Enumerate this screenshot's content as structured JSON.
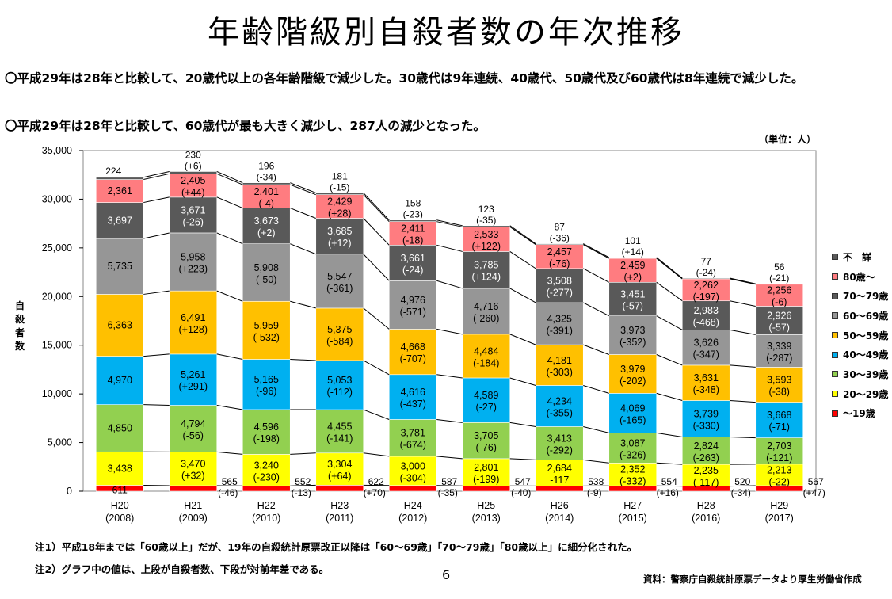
{
  "page": {
    "title": "年齢階級別自殺者数の年次推移",
    "bullet1": "〇平成29年は28年と比較して、20歳代以上の各年齢階級で減少した。30歳代は9年連続、40歳代、50歳代及び60歳代は8年連続で減少した。",
    "bullet2": "〇平成29年は28年と比較して、60歳代が最も大きく減少し、287人の減少となった。",
    "unit": "（単位：人）",
    "note1": "注1）平成18年までは「60歳以上」だが、19年の自殺統計原票改正以降は「60～69歳」「70～79歳」「80歳以上」に細分化された。",
    "note2": "注2）グラフ中の値は、上段が自殺者数、下段が対前年差である。",
    "page_number": "6",
    "source": "資料：警察庁自殺統計原票データより厚生労働省作成"
  },
  "colors": {
    "under19": "#ff0000",
    "s20": "#ffff00",
    "s30": "#92d050",
    "s40": "#00b0f0",
    "s50": "#ffc000",
    "s60": "#969696",
    "s70": "#595959",
    "s80": "#ff7c80",
    "unknown": "#595959"
  },
  "chart_data": {
    "type": "bar",
    "stacked": true,
    "ylabel": "自殺者数",
    "ylim": [
      0,
      35000
    ],
    "yticks": [
      "0",
      "5,000",
      "10,000",
      "15,000",
      "20,000",
      "25,000",
      "30,000",
      "35,000"
    ],
    "categories": [
      "H20\n(2008)",
      "H21\n(2009)",
      "H22\n(2010)",
      "H23\n(2011)",
      "H24\n(2012)",
      "H25\n(2013)",
      "H26\n(2014)",
      "H27\n(2015)",
      "H28\n(2016)",
      "H29\n(2017)"
    ],
    "category_years": [
      "H20",
      "H21",
      "H22",
      "H23",
      "H24",
      "H25",
      "H26",
      "H27",
      "H28",
      "H29"
    ],
    "category_ad": [
      "(2008)",
      "(2009)",
      "(2010)",
      "(2011)",
      "(2012)",
      "(2013)",
      "(2014)",
      "(2015)",
      "(2016)",
      "(2017)"
    ],
    "series": [
      {
        "key": "under19",
        "name": "～19歳",
        "values": [
          611,
          565,
          552,
          622,
          587,
          547,
          538,
          554,
          520,
          567
        ],
        "labels": [
          "611",
          "565",
          "552",
          "622",
          "587",
          "547",
          "538",
          "554",
          "520",
          "567"
        ],
        "diffs": [
          "",
          "(-46)",
          "(-13)",
          "(+70)",
          "(-35)",
          "(-40)",
          "(-9)",
          "(+16)",
          "(-34)",
          "(+47)"
        ]
      },
      {
        "key": "s20",
        "name": "20～29歳",
        "values": [
          3438,
          3470,
          3240,
          3304,
          3000,
          2801,
          2684,
          2352,
          2235,
          2213
        ],
        "labels": [
          "3,438",
          "3,470",
          "3,240",
          "3,304",
          "3,000",
          "2,801",
          "2,684",
          "2,352",
          "2,235",
          "2,213"
        ],
        "diffs": [
          "",
          "(+32)",
          "(-230)",
          "(+64)",
          "(-304)",
          "(-199)",
          "-117",
          "(-332)",
          "(-117)",
          "(-22)"
        ]
      },
      {
        "key": "s30",
        "name": "30～39歳",
        "values": [
          4850,
          4794,
          4596,
          4455,
          3781,
          3705,
          3413,
          3087,
          2824,
          2703
        ],
        "labels": [
          "4,850",
          "4,794",
          "4,596",
          "4,455",
          "3,781",
          "3,705",
          "3,413",
          "3,087",
          "2,824",
          "2,703"
        ],
        "diffs": [
          "",
          "(-56)",
          "(-198)",
          "(-141)",
          "(-674)",
          "(-76)",
          "(-292)",
          "(-326)",
          "(-263)",
          "(-121)"
        ]
      },
      {
        "key": "s40",
        "name": "40～49歳",
        "values": [
          4970,
          5261,
          5165,
          5053,
          4616,
          4589,
          4234,
          4069,
          3739,
          3668
        ],
        "labels": [
          "4,970",
          "5,261",
          "5,165",
          "5,053",
          "4,616",
          "4,589",
          "4,234",
          "4,069",
          "3,739",
          "3,668"
        ],
        "diffs": [
          "",
          "(+291)",
          "(-96)",
          "(-112)",
          "(-437)",
          "(-27)",
          "(-355)",
          "(-165)",
          "(-330)",
          "(-71)"
        ]
      },
      {
        "key": "s50",
        "name": "50～59歳",
        "values": [
          6363,
          6491,
          5959,
          5375,
          4668,
          4484,
          4181,
          3979,
          3631,
          3593
        ],
        "labels": [
          "6,363",
          "6,491",
          "5,959",
          "5,375",
          "4,668",
          "4,484",
          "4,181",
          "3,979",
          "3,631",
          "3,593"
        ],
        "diffs": [
          "",
          "(+128)",
          "(-532)",
          "(-584)",
          "(-707)",
          "(-184)",
          "(-303)",
          "(-202)",
          "(-348)",
          "(-38)"
        ]
      },
      {
        "key": "s60",
        "name": "60～69歳",
        "values": [
          5735,
          5958,
          5908,
          5547,
          4976,
          4716,
          4325,
          3973,
          3626,
          3339
        ],
        "labels": [
          "5,735",
          "5,958",
          "5,908",
          "5,547",
          "4,976",
          "4,716",
          "4,325",
          "3,973",
          "3,626",
          "3,339"
        ],
        "diffs": [
          "",
          "(+223)",
          "(-50)",
          "(-361)",
          "(-571)",
          "(-260)",
          "(-391)",
          "(-352)",
          "(-347)",
          "(-287)"
        ]
      },
      {
        "key": "s70",
        "name": "70～79歳",
        "values": [
          3697,
          3671,
          3673,
          3685,
          3661,
          3785,
          3508,
          3451,
          2983,
          2926
        ],
        "labels": [
          "3,697",
          "3,671",
          "3,673",
          "3,685",
          "3,661",
          "3,785",
          "3,508",
          "3,451",
          "2,983",
          "2,926"
        ],
        "diffs": [
          "",
          "(-26)",
          "(+2)",
          "(+12)",
          "(-24)",
          "(+124)",
          "(-277)",
          "(-57)",
          "(-468)",
          "(-57)"
        ]
      },
      {
        "key": "s80",
        "name": "80歳～",
        "values": [
          2361,
          2405,
          2401,
          2429,
          2411,
          2533,
          2457,
          2459,
          2262,
          2256
        ],
        "labels": [
          "2,361",
          "2,405",
          "2,401",
          "2,429",
          "2,411",
          "2,533",
          "2,457",
          "2,459",
          "2,262",
          "2,256"
        ],
        "diffs": [
          "",
          "(+44)",
          "(-4)",
          "(+28)",
          "(-18)",
          "(+122)",
          "(-76)",
          "(+2)",
          "(-197)",
          "(-6)"
        ]
      },
      {
        "key": "unknown",
        "name": "不　詳",
        "values": [
          224,
          230,
          196,
          181,
          158,
          123,
          87,
          101,
          77,
          56
        ],
        "labels": [
          "224",
          "230",
          "196",
          "181",
          "158",
          "123",
          "87",
          "101",
          "77",
          "56"
        ],
        "diffs": [
          "",
          "(+6)",
          "(-34)",
          "(-15)",
          "(-23)",
          "(-35)",
          "(-36)",
          "(+14)",
          "(-24)",
          "(-21)"
        ]
      }
    ],
    "legend_order": [
      "unknown",
      "s80",
      "s70",
      "s60",
      "s50",
      "s40",
      "s30",
      "s20",
      "under19"
    ],
    "legend_position": "right"
  }
}
